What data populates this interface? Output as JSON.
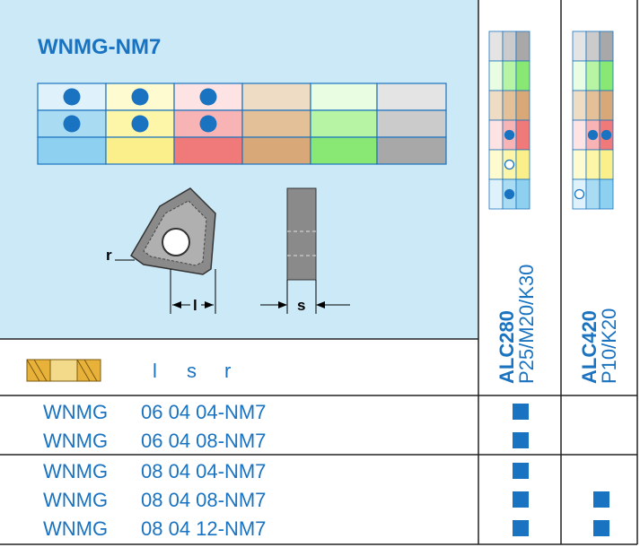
{
  "header": {
    "title": "WNMG-NM7",
    "drawing_labels": [
      "r",
      "l",
      "s"
    ],
    "column_labels": [
      "l",
      "s",
      "r"
    ]
  },
  "grades": [
    {
      "name": "ALC280",
      "application": "P25/M20/K30"
    },
    {
      "name": "ALC420",
      "application": "P10/K20"
    }
  ],
  "rows": [
    {
      "type": "WNMG",
      "size": "06 04 04-NM7"
    },
    {
      "type": "WNMG",
      "size": "06 04 08-NM7"
    },
    {
      "type": "WNMG",
      "size": "08 04 04-NM7"
    },
    {
      "type": "WNMG",
      "size": "08 04 08-NM7"
    },
    {
      "type": "WNMG",
      "size": "08 04 12-NM7"
    }
  ]
}
